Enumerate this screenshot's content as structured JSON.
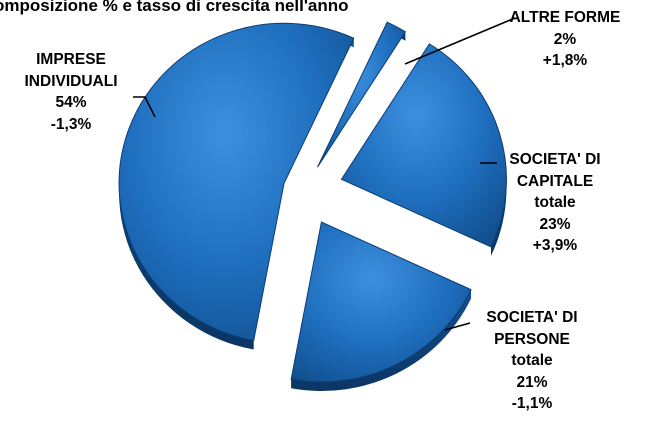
{
  "chart_data": {
    "type": "pie",
    "title": "omposizione  % e tasso di crescita nell'anno",
    "slices": [
      {
        "name_lines": [
          "ALTRE FORME"
        ],
        "percent": 2,
        "percent_label": "2%",
        "growth_label": "+1,8%",
        "value": 2
      },
      {
        "name_lines": [
          "SOCIETA' DI",
          "CAPITALE",
          "totale"
        ],
        "percent": 23,
        "percent_label": "23%",
        "growth_label": "+3,9%",
        "value": 23
      },
      {
        "name_lines": [
          "SOCIETA' DI",
          "PERSONE",
          "totale"
        ],
        "percent": 21,
        "percent_label": "21%",
        "growth_label": "-1,1%",
        "value": 21
      },
      {
        "name_lines": [
          "IMPRESE",
          "INDIVIDUALI"
        ],
        "percent": 54,
        "percent_label": "54%",
        "growth_label": "-1,3%",
        "value": 54
      }
    ],
    "exploded": true,
    "style": "3d",
    "colors": {
      "slice_fill": "#1f6fbf",
      "slice_edge": "#0b3d73",
      "label_text": "#000000"
    }
  }
}
